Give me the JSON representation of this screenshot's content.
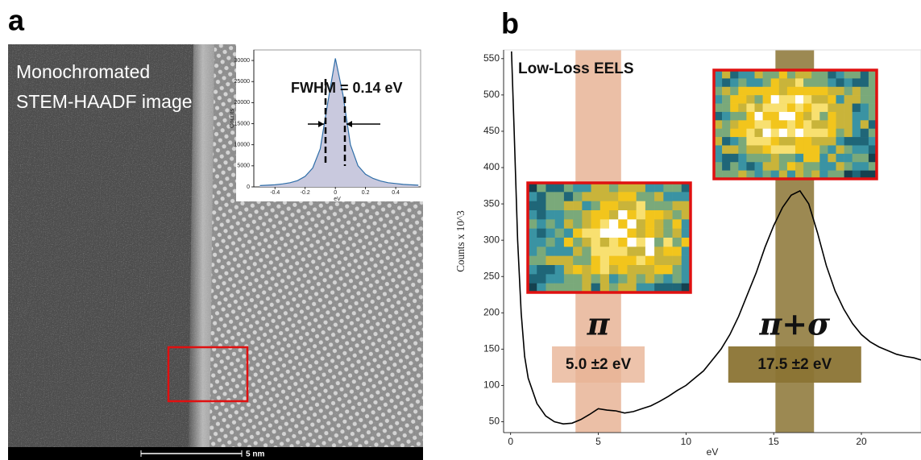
{
  "panel_a": {
    "label": "a",
    "caption_lines": [
      "Monochromated",
      "STEM-HAADF image"
    ],
    "scale_bar": "5 nm"
  },
  "panel_b": {
    "label": "b"
  },
  "chart_data": [
    {
      "type": "area",
      "x": [
        -0.5,
        -0.45,
        -0.4,
        -0.35,
        -0.3,
        -0.25,
        -0.2,
        -0.15,
        -0.1,
        -0.05,
        0,
        0.05,
        0.1,
        0.15,
        0.2,
        0.25,
        0.3,
        0.35,
        0.4,
        0.45,
        0.5,
        0.55
      ],
      "values": [
        300,
        400,
        500,
        700,
        1000,
        1500,
        2500,
        4500,
        9000,
        20000,
        30500,
        22000,
        10000,
        5000,
        3000,
        2000,
        1400,
        1000,
        800,
        600,
        500,
        400
      ],
      "color": "#2f6ea8",
      "fill": "#c9c9de",
      "xlim": [
        -0.54,
        0.565
      ],
      "ylim": [
        0,
        32500
      ],
      "xticks": [
        -0.4,
        -0.2,
        0,
        0.2,
        0.4
      ],
      "yticks": [
        0,
        5000,
        10000,
        15000,
        20000,
        25000,
        30000
      ],
      "xlabel": "eV",
      "ylabel": "Counts",
      "annotation": "FWHM = 0.14 eV"
    },
    {
      "type": "line",
      "title": "Low-Loss EELS",
      "x": [
        0.05,
        0.2,
        0.4,
        0.6,
        0.8,
        1,
        1.5,
        2,
        2.5,
        3,
        3.5,
        4,
        4.5,
        5,
        5.5,
        6,
        6.5,
        7,
        7.5,
        8,
        8.5,
        9,
        9.5,
        10,
        10.5,
        11,
        11.5,
        12,
        12.5,
        13,
        13.5,
        14,
        14.5,
        15,
        15.5,
        16,
        16.5,
        17,
        17.5,
        18,
        18.5,
        19,
        19.5,
        20,
        20.5,
        21,
        21.5,
        22,
        22.5,
        23,
        23.4
      ],
      "values": [
        560,
        450,
        300,
        200,
        140,
        110,
        75,
        58,
        50,
        47,
        48,
        53,
        60,
        68,
        66,
        65,
        62,
        64,
        68,
        72,
        78,
        85,
        93,
        100,
        110,
        120,
        135,
        150,
        170,
        195,
        225,
        255,
        290,
        320,
        345,
        362,
        368,
        350,
        310,
        265,
        230,
        205,
        185,
        170,
        160,
        153,
        148,
        143,
        140,
        138,
        135
      ],
      "color": "#000000",
      "xlim": [
        -0.4,
        23.4
      ],
      "ylim": [
        35,
        562
      ],
      "xticks": [
        0,
        5,
        10,
        15,
        20
      ],
      "yticks": [
        50,
        100,
        150,
        200,
        250,
        300,
        350,
        400,
        450,
        500,
        550
      ],
      "xlabel": "eV",
      "ylabel": "Counts x 10^3",
      "bands": [
        {
          "from": 3.7,
          "to": 6.3,
          "color": "#e8b496",
          "symbol": "π",
          "label": "5.0 ±2 eV"
        },
        {
          "from": 15.1,
          "to": 17.3,
          "color": "#8b7434",
          "symbol": "π+σ",
          "label": "17.5 ±2 eV"
        }
      ]
    }
  ]
}
